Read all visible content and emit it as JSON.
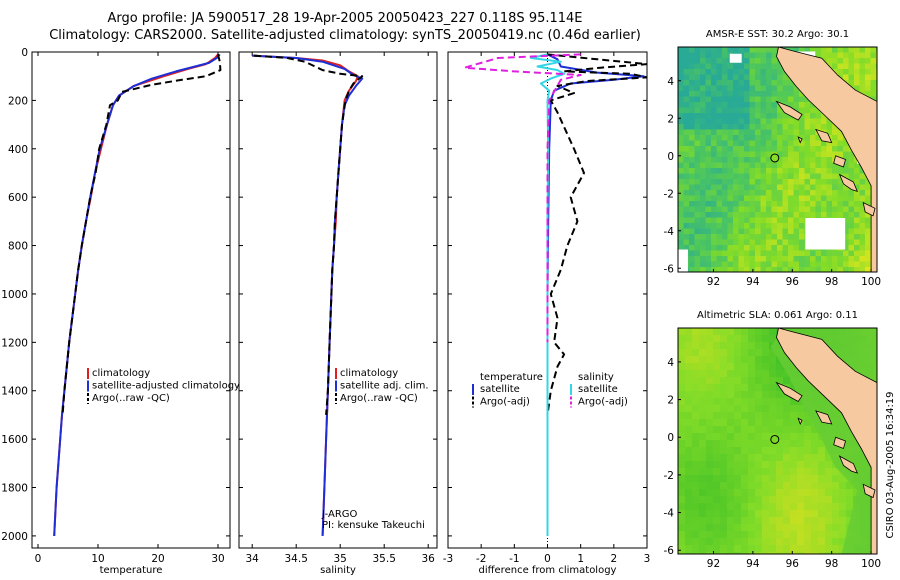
{
  "header": {
    "line1": "Argo profile: JA 5900517_28 19-Apr-2005 20050423_227 0.118S 95.114E",
    "line2": "Climatology: CARS2000. Satellite-adjusted climatology: synTS_20050419.nc (0.46d earlier)"
  },
  "footer_stamp": "CSIRO 03-Aug-2005 16:34:19",
  "colors": {
    "red": "#e02020",
    "blue": "#1f2fd6",
    "black": "#000000",
    "cyan": "#33d6e6",
    "magenta": "#e020e0",
    "land": "#f7c9a0",
    "ocean_green": "#66cc33"
  },
  "chart_data": [
    {
      "type": "line",
      "panel": "temperature",
      "xlabel": "temperature",
      "ylabel": "",
      "xlim": [
        -1,
        32
      ],
      "ylim": [
        2050,
        0
      ],
      "xticks": [
        0,
        10,
        20,
        30
      ],
      "yticks": [
        0,
        200,
        400,
        600,
        800,
        1000,
        1200,
        1400,
        1600,
        1800,
        2000
      ],
      "legend": [
        "climatology",
        "satellite-adjusted climatology",
        "Argo(..raw -QC)"
      ],
      "series": [
        {
          "name": "climatology",
          "color": "red",
          "dash": "solid",
          "points": [
            [
              30,
              10
            ],
            [
              29.5,
              25
            ],
            [
              28,
              50
            ],
            [
              25,
              70
            ],
            [
              21,
              100
            ],
            [
              16,
              140
            ],
            [
              13.5,
              180
            ],
            [
              12.5,
              220
            ],
            [
              11.5,
              300
            ],
            [
              10.5,
              400
            ],
            [
              9.5,
              500
            ],
            [
              8.8,
              600
            ],
            [
              8,
              700
            ],
            [
              7.3,
              800
            ],
            [
              6.7,
              900
            ],
            [
              6.2,
              1000
            ],
            [
              5.7,
              1100
            ],
            [
              5.2,
              1200
            ],
            [
              4.8,
              1300
            ],
            [
              4.4,
              1400
            ],
            [
              4,
              1500
            ],
            [
              3.7,
              1600
            ],
            [
              3.4,
              1700
            ],
            [
              3.1,
              1800
            ],
            [
              2.9,
              1900
            ],
            [
              2.7,
              2000
            ]
          ]
        },
        {
          "name": "satellite-adjusted climatology",
          "color": "blue",
          "dash": "solid",
          "points": [
            [
              30.3,
              10
            ],
            [
              29.8,
              25
            ],
            [
              28.5,
              45
            ],
            [
              23,
              80
            ],
            [
              19,
              110
            ],
            [
              16,
              140
            ],
            [
              13.5,
              180
            ],
            [
              12.5,
              220
            ],
            [
              11.5,
              300
            ],
            [
              10.3,
              400
            ],
            [
              9.5,
              500
            ],
            [
              8.7,
              600
            ],
            [
              8,
              700
            ],
            [
              7.3,
              800
            ],
            [
              6.7,
              900
            ],
            [
              6.2,
              1000
            ],
            [
              5.7,
              1100
            ],
            [
              5.2,
              1200
            ],
            [
              4.8,
              1300
            ],
            [
              4.4,
              1400
            ],
            [
              4,
              1500
            ],
            [
              3.7,
              1600
            ],
            [
              3.4,
              1700
            ],
            [
              3.1,
              1800
            ],
            [
              2.9,
              1900
            ],
            [
              2.7,
              2000
            ]
          ]
        },
        {
          "name": "Argo(..raw -QC)",
          "color": "black",
          "dash": "dash",
          "points": [
            [
              30,
              10
            ],
            [
              30.3,
              40
            ],
            [
              30.4,
              75
            ],
            [
              28,
              100
            ],
            [
              24,
              115
            ],
            [
              19,
              135
            ],
            [
              14,
              165
            ],
            [
              13.3,
              200
            ],
            [
              12,
              220
            ],
            [
              11.4,
              300
            ],
            [
              10.2,
              400
            ],
            [
              9.6,
              500
            ],
            [
              8.7,
              600
            ],
            [
              8,
              700
            ],
            [
              7.3,
              800
            ],
            [
              6.7,
              900
            ],
            [
              6.2,
              1000
            ],
            [
              5.7,
              1100
            ],
            [
              5.2,
              1200
            ],
            [
              4.8,
              1300
            ],
            [
              4.4,
              1400
            ],
            [
              4.1,
              1500
            ]
          ]
        }
      ]
    },
    {
      "type": "line",
      "panel": "salinity",
      "xlabel": "salinity",
      "ylabel": "",
      "xlim": [
        33.85,
        36.1
      ],
      "ylim": [
        2050,
        0
      ],
      "xticks": [
        34,
        34.5,
        35,
        35.5,
        36
      ],
      "legend": [
        "climatology",
        "satellite adj. clim.",
        "Argo(..raw -QC)"
      ],
      "annotations": [
        "J-ARGO",
        "PI: kensuke Takeuchi"
      ],
      "series": [
        {
          "name": "climatology",
          "color": "red",
          "dash": "solid",
          "points": [
            [
              34.0,
              15
            ],
            [
              34.5,
              25
            ],
            [
              34.8,
              35
            ],
            [
              35.0,
              55
            ],
            [
              35.1,
              80
            ],
            [
              35.2,
              100
            ],
            [
              35.18,
              120
            ],
            [
              35.1,
              160
            ],
            [
              35.05,
              200
            ],
            [
              35.02,
              300
            ],
            [
              35.0,
              400
            ],
            [
              34.98,
              500
            ],
            [
              34.96,
              600
            ],
            [
              34.95,
              700
            ],
            [
              34.93,
              800
            ],
            [
              34.91,
              900
            ],
            [
              34.9,
              1000
            ],
            [
              34.88,
              1200
            ],
            [
              34.86,
              1400
            ],
            [
              34.84,
              1600
            ],
            [
              34.82,
              1800
            ],
            [
              34.8,
              2000
            ]
          ]
        },
        {
          "name": "satellite adj. clim.",
          "color": "blue",
          "dash": "solid",
          "points": [
            [
              34.0,
              15
            ],
            [
              34.5,
              25
            ],
            [
              34.8,
              40
            ],
            [
              35.05,
              70
            ],
            [
              35.15,
              95
            ],
            [
              35.25,
              110
            ],
            [
              35.18,
              140
            ],
            [
              35.1,
              180
            ],
            [
              35.05,
              220
            ],
            [
              35.02,
              300
            ],
            [
              35.0,
              400
            ],
            [
              34.98,
              500
            ],
            [
              34.96,
              600
            ],
            [
              34.94,
              700
            ],
            [
              34.93,
              800
            ],
            [
              34.91,
              900
            ],
            [
              34.9,
              1000
            ],
            [
              34.88,
              1200
            ],
            [
              34.86,
              1400
            ],
            [
              34.84,
              1600
            ],
            [
              34.82,
              1800
            ],
            [
              34.8,
              2000
            ]
          ]
        },
        {
          "name": "Argo(..raw -QC)",
          "color": "black",
          "dash": "dash",
          "points": [
            [
              34.02,
              15
            ],
            [
              34.4,
              25
            ],
            [
              34.6,
              40
            ],
            [
              34.8,
              75
            ],
            [
              35.0,
              90
            ],
            [
              35.25,
              100
            ],
            [
              35.15,
              130
            ],
            [
              35.1,
              160
            ],
            [
              35.06,
              200
            ],
            [
              35.02,
              300
            ],
            [
              35.0,
              400
            ],
            [
              34.98,
              500
            ],
            [
              34.96,
              600
            ],
            [
              34.94,
              700
            ],
            [
              34.93,
              800
            ],
            [
              34.91,
              900
            ],
            [
              34.9,
              1000
            ],
            [
              34.88,
              1200
            ],
            [
              34.86,
              1400
            ],
            [
              34.84,
              1500
            ]
          ]
        }
      ]
    },
    {
      "type": "line",
      "panel": "difference",
      "xlabel": "difference from climatology",
      "ylabel": "",
      "xlim": [
        -3,
        3
      ],
      "ylim": [
        2050,
        0
      ],
      "xticks": [
        -3,
        -2,
        -1,
        0,
        1,
        2,
        3
      ],
      "legend": [
        {
          "heading": "temperature",
          "items": [
            "satellite",
            "Argo(-adj)"
          ]
        },
        {
          "heading": "salinity",
          "items": [
            "satellite",
            "Argo(-adj)"
          ]
        }
      ],
      "series": [
        {
          "name": "temperature satellite",
          "color": "blue",
          "dash": "solid",
          "points": [
            [
              0,
              10
            ],
            [
              0.3,
              30
            ],
            [
              0.4,
              60
            ],
            [
              1.5,
              85
            ],
            [
              2.9,
              100
            ],
            [
              2.0,
              115
            ],
            [
              0.7,
              130
            ],
            [
              0.2,
              160
            ],
            [
              0.1,
              200
            ],
            [
              0.05,
              400
            ],
            [
              0.02,
              700
            ],
            [
              0,
              1000
            ],
            [
              0,
              1400
            ],
            [
              0,
              1900
            ]
          ]
        },
        {
          "name": "temperature Argo(-adj)",
          "color": "black",
          "dash": "dash",
          "points": [
            [
              0,
              10
            ],
            [
              1.5,
              30
            ],
            [
              3,
              50
            ],
            [
              1.6,
              65
            ],
            [
              0.5,
              80
            ],
            [
              2.5,
              90
            ],
            [
              3,
              105
            ],
            [
              1.2,
              120
            ],
            [
              0.3,
              140
            ],
            [
              0.8,
              170
            ],
            [
              0.1,
              200
            ],
            [
              0.3,
              250
            ],
            [
              0.8,
              400
            ],
            [
              1.1,
              500
            ],
            [
              0.7,
              600
            ],
            [
              0.9,
              700
            ],
            [
              0.6,
              800
            ],
            [
              0.4,
              900
            ],
            [
              0.1,
              1000
            ],
            [
              0.3,
              1100
            ],
            [
              0.2,
              1200
            ],
            [
              0.5,
              1250
            ],
            [
              0.3,
              1300
            ],
            [
              0.1,
              1400
            ],
            [
              0,
              1500
            ]
          ]
        },
        {
          "name": "salinity satellite",
          "color": "cyan",
          "dash": "solid",
          "points": [
            [
              0,
              10
            ],
            [
              -0.5,
              25
            ],
            [
              0.4,
              40
            ],
            [
              -0.3,
              60
            ],
            [
              0.3,
              75
            ],
            [
              0.5,
              90
            ],
            [
              0.1,
              110
            ],
            [
              -0.2,
              130
            ],
            [
              0.05,
              160
            ],
            [
              0,
              200
            ],
            [
              0.02,
              400
            ],
            [
              0,
              700
            ],
            [
              0,
              1000
            ],
            [
              0,
              1400
            ],
            [
              0,
              2000
            ]
          ]
        },
        {
          "name": "salinity Argo(-adj)",
          "color": "magenta",
          "dash": "dash",
          "points": [
            [
              1,
              10
            ],
            [
              -1.5,
              25
            ],
            [
              -2.5,
              65
            ],
            [
              -1,
              80
            ],
            [
              1,
              95
            ],
            [
              0.4,
              115
            ],
            [
              0.05,
              200
            ],
            [
              0,
              400
            ],
            [
              0,
              800
            ],
            [
              0,
              1200
            ]
          ]
        }
      ]
    },
    {
      "type": "heatmap",
      "panel": "sst_map",
      "title": "AMSR-E SST: 30.2 Argo: 30.1",
      "xlim": [
        90.2,
        100.3
      ],
      "ylim": [
        -6.2,
        5.8
      ],
      "xticks": [
        92,
        94,
        96,
        98,
        100
      ],
      "yticks": [
        -6,
        -4,
        -2,
        0,
        2,
        4
      ],
      "marker": [
        95.114,
        -0.118
      ],
      "palette": "teal-green-yellow"
    },
    {
      "type": "heatmap",
      "panel": "sla_map",
      "title": "Altimetric SLA: 0.061 Argo: 0.11",
      "xlim": [
        90.2,
        100.3
      ],
      "ylim": [
        -6.2,
        5.8
      ],
      "xticks": [
        92,
        94,
        96,
        98,
        100
      ],
      "yticks": [
        -6,
        -4,
        -2,
        0,
        2,
        4
      ],
      "marker": [
        95.114,
        -0.118
      ],
      "palette": "green-yellow"
    }
  ]
}
